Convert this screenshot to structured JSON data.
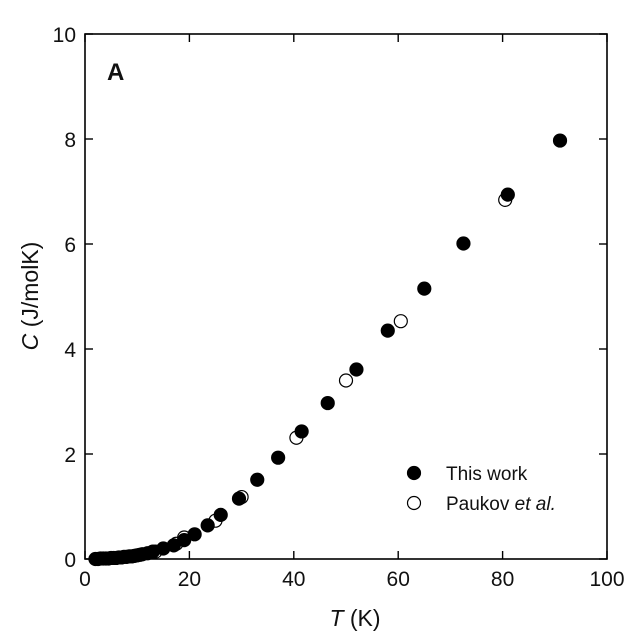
{
  "chart_data": {
    "type": "scatter",
    "panel_label": "A",
    "xlabel": {
      "italic": "T",
      "rest": " (K)"
    },
    "ylabel": {
      "italic": "C",
      "rest": " (J/molK)"
    },
    "xlim": [
      0,
      100
    ],
    "ylim": [
      0,
      10
    ],
    "xticks": [
      0,
      20,
      40,
      60,
      80,
      100
    ],
    "yticks": [
      0,
      2,
      4,
      6,
      8,
      10
    ],
    "grid": false,
    "legend_position": "bottom-right",
    "series": [
      {
        "name": "This work",
        "marker": "filled-circle",
        "color": "#000000",
        "points": [
          [
            2.0,
            0.0
          ],
          [
            2.5,
            0.0
          ],
          [
            3.0,
            0.01
          ],
          [
            3.5,
            0.01
          ],
          [
            4.0,
            0.01
          ],
          [
            4.5,
            0.01
          ],
          [
            5.0,
            0.02
          ],
          [
            5.5,
            0.02
          ],
          [
            6.0,
            0.02
          ],
          [
            6.5,
            0.03
          ],
          [
            7.0,
            0.03
          ],
          [
            7.5,
            0.04
          ],
          [
            8.0,
            0.04
          ],
          [
            8.5,
            0.05
          ],
          [
            9.0,
            0.05
          ],
          [
            9.5,
            0.06
          ],
          [
            10.0,
            0.07
          ],
          [
            10.5,
            0.08
          ],
          [
            11.0,
            0.09
          ],
          [
            12.0,
            0.11
          ],
          [
            13.0,
            0.14
          ],
          [
            15.0,
            0.2
          ],
          [
            17.0,
            0.26
          ],
          [
            19.0,
            0.36
          ],
          [
            21.0,
            0.47
          ],
          [
            23.5,
            0.64
          ],
          [
            26.0,
            0.84
          ],
          [
            29.5,
            1.15
          ],
          [
            33.0,
            1.51
          ],
          [
            37.0,
            1.93
          ],
          [
            41.5,
            2.43
          ],
          [
            46.5,
            2.97
          ],
          [
            52.0,
            3.61
          ],
          [
            58.0,
            4.35
          ],
          [
            65.0,
            5.15
          ],
          [
            72.5,
            6.01
          ],
          [
            81.0,
            6.94
          ],
          [
            91.0,
            7.97
          ]
        ]
      },
      {
        "name": "Paukov",
        "name_italic": " et al.",
        "marker": "open-circle",
        "color": "#000000",
        "points": [
          [
            13.5,
            0.14
          ],
          [
            17.5,
            0.29
          ],
          [
            19.0,
            0.41
          ],
          [
            25.0,
            0.73
          ],
          [
            30.0,
            1.18
          ],
          [
            40.5,
            2.31
          ],
          [
            50.0,
            3.4
          ],
          [
            60.5,
            4.53
          ],
          [
            80.5,
            6.84
          ]
        ]
      }
    ]
  }
}
